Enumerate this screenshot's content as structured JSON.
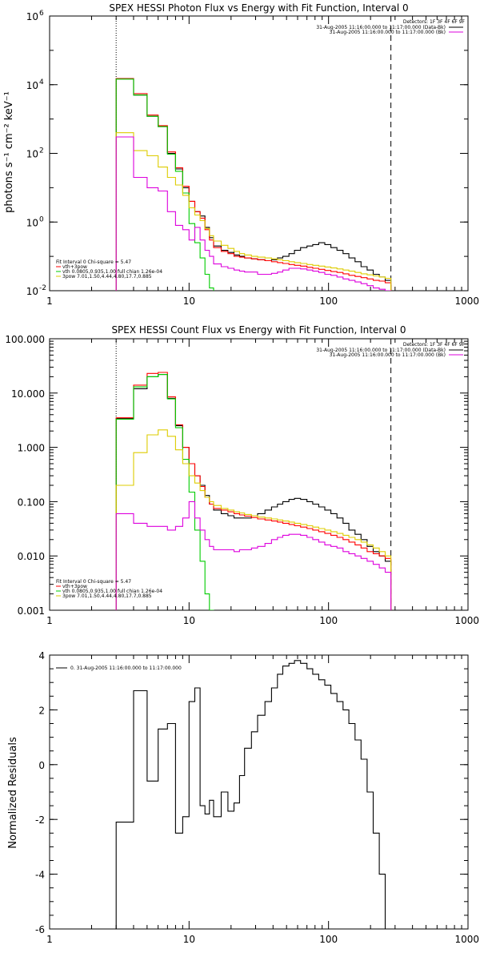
{
  "chart_data": [
    {
      "type": "line",
      "title": "SPEX HESSI Photon Flux vs Energy with Fit Function, Interval 0",
      "xlabel": "",
      "ylabel": "photons s⁻¹ cm⁻² keV⁻¹",
      "xscale": "log",
      "yscale": "log",
      "xlim": [
        1,
        1000
      ],
      "ylim": [
        0.01,
        1000000
      ],
      "x_ticks": [
        1,
        10,
        100,
        1000
      ],
      "x_tick_labels": [
        "1",
        "10",
        "100",
        "1000"
      ],
      "y_ticks": [
        0.01,
        1,
        100,
        10000,
        1000000
      ],
      "y_tick_labels": [
        "10",
        "10",
        "10",
        "10",
        "10"
      ],
      "y_tick_exponents": [
        "-2",
        "0",
        "2",
        "4",
        "6"
      ],
      "vlines": [
        {
          "x": 3,
          "style": "dotted"
        },
        {
          "x": 280,
          "style": "dashed"
        }
      ],
      "legend_top": {
        "placement": "top-right",
        "header": "Detectors: 1F 3F 4F 6F 9F",
        "entries": [
          {
            "label": "31-Aug-2005 11:16:00.000 to 11:17:00.000 (Data-Bk)",
            "color": "#000000"
          },
          {
            "label": "31-Aug-2005 11:16:00.000 to 11:17:00.000 (Bk)",
            "color": "#dd00dd"
          }
        ]
      },
      "legend_bottom": {
        "placement": "bottom-left",
        "header": "Fit Interval 0   Chi-square = 5.47",
        "entries": [
          {
            "label": "vth+3pow",
            "color": "#ff0000"
          },
          {
            "label": "vth 0.0805,0.935,1.00  full chian 1.26e-04",
            "color": "#00cc00"
          },
          {
            "label": "3pow 7.01,1.50,4.44,4.80,17.7,0.885",
            "color": "#ddcc00"
          }
        ]
      },
      "series": [
        {
          "color": "#000000",
          "edges": [
            3,
            4,
            5,
            6,
            7,
            8,
            9,
            10,
            11,
            12,
            13,
            14,
            15,
            17,
            19,
            21,
            23,
            25,
            28,
            31,
            35,
            39,
            43,
            47,
            52,
            57,
            63,
            70,
            77,
            85,
            94,
            104,
            115,
            127,
            140,
            155,
            171,
            189,
            209,
            231,
            255,
            280
          ],
          "values": [
            15000,
            5000,
            1200,
            600,
            100,
            35,
            10,
            4,
            2,
            1.5,
            0.7,
            0.35,
            0.2,
            0.15,
            0.13,
            0.11,
            0.1,
            0.09,
            0.085,
            0.08,
            0.075,
            0.08,
            0.09,
            0.1,
            0.12,
            0.15,
            0.18,
            0.2,
            0.22,
            0.25,
            0.22,
            0.18,
            0.15,
            0.12,
            0.09,
            0.07,
            0.05,
            0.04,
            0.03,
            0.025,
            0.02
          ]
        },
        {
          "color": "#ff0000",
          "edges": [
            3,
            4,
            5,
            6,
            7,
            8,
            9,
            10,
            11,
            12,
            13,
            14,
            15,
            17,
            19,
            21,
            23,
            25,
            28,
            31,
            35,
            39,
            43,
            47,
            52,
            57,
            63,
            70,
            77,
            85,
            94,
            104,
            115,
            127,
            140,
            155,
            171,
            189,
            209,
            231,
            255,
            280
          ],
          "values": [
            15000,
            5500,
            1300,
            640,
            110,
            38,
            11,
            4,
            2,
            1.3,
            0.6,
            0.3,
            0.18,
            0.14,
            0.12,
            0.1,
            0.095,
            0.09,
            0.085,
            0.08,
            0.075,
            0.07,
            0.066,
            0.062,
            0.058,
            0.055,
            0.052,
            0.048,
            0.045,
            0.042,
            0.039,
            0.036,
            0.034,
            0.031,
            0.028,
            0.026,
            0.024,
            0.022,
            0.02,
            0.019,
            0.017
          ]
        },
        {
          "color": "#00cc00",
          "edges": [
            3,
            4,
            5,
            6,
            7,
            8,
            9,
            10,
            11,
            12,
            13,
            14,
            15
          ],
          "values": [
            14500,
            5000,
            1200,
            600,
            95,
            30,
            7,
            0.9,
            0.25,
            0.09,
            0.03,
            0.012
          ]
        },
        {
          "color": "#ddcc00",
          "edges": [
            3,
            4,
            5,
            6,
            7,
            8,
            9,
            10,
            11,
            12,
            13,
            14,
            15,
            17,
            19,
            21,
            23,
            25,
            28,
            31,
            35,
            39,
            43,
            47,
            52,
            57,
            63,
            70,
            77,
            85,
            94,
            104,
            115,
            127,
            140,
            155,
            171,
            189,
            209,
            231,
            255,
            280
          ],
          "values": [
            400,
            120,
            85,
            40,
            20,
            12,
            6,
            2.6,
            1.6,
            1.1,
            0.65,
            0.4,
            0.28,
            0.21,
            0.17,
            0.14,
            0.12,
            0.11,
            0.1,
            0.095,
            0.09,
            0.085,
            0.08,
            0.075,
            0.07,
            0.066,
            0.062,
            0.058,
            0.055,
            0.052,
            0.049,
            0.046,
            0.043,
            0.04,
            0.037,
            0.034,
            0.031,
            0.029,
            0.027,
            0.025,
            0.023
          ]
        },
        {
          "color": "#dd00dd",
          "edges": [
            3,
            4,
            5,
            6,
            7,
            8,
            9,
            10,
            11,
            12,
            13,
            14,
            15,
            17,
            19,
            21,
            23,
            25,
            28,
            31,
            35,
            39,
            43,
            47,
            52,
            57,
            63,
            70,
            77,
            85,
            94,
            104,
            115,
            127,
            140,
            155,
            171,
            189,
            209,
            231,
            255,
            280
          ],
          "values": [
            300,
            20,
            10,
            8,
            2,
            0.8,
            0.6,
            0.3,
            0.7,
            0.3,
            0.15,
            0.1,
            0.06,
            0.05,
            0.045,
            0.04,
            0.037,
            0.035,
            0.035,
            0.03,
            0.03,
            0.032,
            0.035,
            0.04,
            0.045,
            0.045,
            0.043,
            0.04,
            0.037,
            0.034,
            0.03,
            0.028,
            0.025,
            0.022,
            0.02,
            0.018,
            0.016,
            0.014,
            0.012,
            0.011,
            0.01
          ]
        }
      ]
    },
    {
      "type": "line",
      "title": "SPEX HESSI Count Flux vs Energy with Fit Function, Interval 0",
      "xlabel": "",
      "ylabel": "",
      "xscale": "log",
      "yscale": "log",
      "xlim": [
        1,
        1000
      ],
      "ylim": [
        0.001,
        100
      ],
      "x_ticks": [
        1,
        10,
        100,
        1000
      ],
      "x_tick_labels": [
        "1",
        "10",
        "100",
        "1000"
      ],
      "y_ticks": [
        0.001,
        0.01,
        0.1,
        1,
        10,
        100
      ],
      "y_tick_labels": [
        "0.001",
        "0.010",
        "0.100",
        "1.000",
        "10.000",
        "100.000"
      ],
      "vlines": [
        {
          "x": 3,
          "style": "dotted"
        },
        {
          "x": 280,
          "style": "dashed"
        }
      ],
      "legend_top": {
        "placement": "top-right",
        "header": "Detectors: 1F 3F 4F 6F 9F",
        "entries": [
          {
            "label": "31-Aug-2005 11:16:00.000 to 11:17:00.000 (Data-Bk)",
            "color": "#000000"
          },
          {
            "label": "31-Aug-2005 11:16:00.000 to 11:17:00.000 (Bk)",
            "color": "#dd00dd"
          }
        ]
      },
      "legend_bottom": {
        "placement": "bottom-left",
        "header": "Fit Interval 0   Chi-square = 5.47",
        "entries": [
          {
            "label": "vth+3pow",
            "color": "#ff0000"
          },
          {
            "label": "vth 0.0805,0.935,1.00  full chian 1.26e-04",
            "color": "#00cc00"
          },
          {
            "label": "3pow 7.01,1.50,4.44,4.80,17.7,0.885",
            "color": "#ddcc00"
          }
        ]
      },
      "series": [
        {
          "color": "#000000",
          "edges": [
            3,
            4,
            5,
            6,
            7,
            8,
            9,
            10,
            11,
            12,
            13,
            14,
            15,
            17,
            19,
            21,
            23,
            25,
            28,
            31,
            35,
            39,
            43,
            47,
            52,
            57,
            63,
            70,
            77,
            85,
            94,
            104,
            115,
            127,
            140,
            155,
            171,
            189,
            209,
            231,
            255,
            280
          ],
          "values": [
            3.4,
            12,
            20,
            22,
            8,
            2.5,
            1,
            0.5,
            0.3,
            0.2,
            0.13,
            0.09,
            0.07,
            0.06,
            0.055,
            0.05,
            0.05,
            0.05,
            0.055,
            0.06,
            0.07,
            0.08,
            0.09,
            0.1,
            0.11,
            0.115,
            0.11,
            0.1,
            0.09,
            0.08,
            0.07,
            0.06,
            0.05,
            0.04,
            0.03,
            0.025,
            0.02,
            0.015,
            0.012,
            0.01,
            0.008
          ]
        },
        {
          "color": "#ff0000",
          "edges": [
            3,
            4,
            5,
            6,
            7,
            8,
            9,
            10,
            11,
            12,
            13,
            14,
            15,
            17,
            19,
            21,
            23,
            25,
            28,
            31,
            35,
            39,
            43,
            47,
            52,
            57,
            63,
            70,
            77,
            85,
            94,
            104,
            115,
            127,
            140,
            155,
            171,
            189,
            209,
            231,
            255,
            280
          ],
          "values": [
            3.5,
            14,
            23,
            24,
            8.5,
            2.6,
            1,
            0.5,
            0.3,
            0.19,
            0.12,
            0.09,
            0.075,
            0.07,
            0.065,
            0.06,
            0.057,
            0.054,
            0.051,
            0.048,
            0.046,
            0.044,
            0.042,
            0.04,
            0.038,
            0.036,
            0.034,
            0.032,
            0.03,
            0.028,
            0.026,
            0.024,
            0.022,
            0.02,
            0.018,
            0.016,
            0.014,
            0.012,
            0.011,
            0.01,
            0.009
          ]
        },
        {
          "color": "#00cc00",
          "edges": [
            3,
            4,
            5,
            6,
            7,
            8,
            9,
            10,
            11,
            12,
            13,
            14,
            15
          ],
          "values": [
            3.3,
            13,
            20,
            22,
            7.8,
            2.3,
            0.6,
            0.15,
            0.03,
            0.008,
            0.002,
            0.001
          ]
        },
        {
          "color": "#ddcc00",
          "edges": [
            3,
            4,
            5,
            6,
            7,
            8,
            9,
            10,
            11,
            12,
            13,
            14,
            15,
            17,
            19,
            21,
            23,
            25,
            28,
            31,
            35,
            39,
            43,
            47,
            52,
            57,
            63,
            70,
            77,
            85,
            94,
            104,
            115,
            127,
            140,
            155,
            171,
            189,
            209,
            231,
            255,
            280
          ],
          "values": [
            0.2,
            0.8,
            1.7,
            2.1,
            1.6,
            0.9,
            0.5,
            0.3,
            0.22,
            0.16,
            0.12,
            0.1,
            0.085,
            0.075,
            0.07,
            0.065,
            0.062,
            0.058,
            0.055,
            0.052,
            0.05,
            0.048,
            0.046,
            0.044,
            0.042,
            0.04,
            0.038,
            0.036,
            0.034,
            0.032,
            0.03,
            0.028,
            0.026,
            0.024,
            0.022,
            0.02,
            0.018,
            0.016,
            0.014,
            0.012,
            0.01
          ]
        },
        {
          "color": "#dd00dd",
          "edges": [
            3,
            4,
            5,
            6,
            7,
            8,
            9,
            10,
            11,
            12,
            13,
            14,
            15,
            17,
            19,
            21,
            23,
            25,
            28,
            31,
            35,
            39,
            43,
            47,
            52,
            57,
            63,
            70,
            77,
            85,
            94,
            104,
            115,
            127,
            140,
            155,
            171,
            189,
            209,
            231,
            255,
            280
          ],
          "values": [
            0.06,
            0.04,
            0.035,
            0.035,
            0.03,
            0.035,
            0.05,
            0.1,
            0.05,
            0.03,
            0.02,
            0.015,
            0.013,
            0.013,
            0.013,
            0.012,
            0.013,
            0.013,
            0.014,
            0.015,
            0.017,
            0.02,
            0.022,
            0.024,
            0.025,
            0.025,
            0.024,
            0.022,
            0.02,
            0.018,
            0.016,
            0.015,
            0.014,
            0.012,
            0.011,
            0.01,
            0.009,
            0.008,
            0.007,
            0.006,
            0.005
          ]
        }
      ]
    },
    {
      "type": "line",
      "title": "",
      "xlabel": "",
      "ylabel": "Normalized Residuals",
      "xscale": "log",
      "yscale": "linear",
      "xlim": [
        1,
        1000
      ],
      "ylim": [
        -6,
        4
      ],
      "x_ticks": [
        1,
        10,
        100,
        1000
      ],
      "x_tick_labels": [
        "1",
        "10",
        "100",
        "1000"
      ],
      "y_ticks": [
        -6,
        -4,
        -2,
        0,
        2,
        4
      ],
      "y_tick_labels": [
        "-6",
        "-4",
        "-2",
        "0",
        "2",
        "4"
      ],
      "vlines": [],
      "legend_top": {
        "placement": "top-left",
        "header": "",
        "entries": [
          {
            "label": "0. 31-Aug-2005 11:16:00.000 to 11:17:00.000",
            "color": "#000000"
          }
        ]
      },
      "legend_bottom": null,
      "series": [
        {
          "color": "#000000",
          "edges": [
            3,
            4,
            5,
            6,
            7,
            8,
            9,
            10,
            11,
            12,
            13,
            14,
            15,
            17,
            19,
            21,
            23,
            25,
            28,
            31,
            35,
            39,
            43,
            47,
            52,
            57,
            63,
            70,
            77,
            85,
            94,
            104,
            115,
            127,
            140,
            155,
            171,
            189,
            209,
            231,
            255,
            280
          ],
          "values": [
            -2.1,
            2.7,
            -0.6,
            1.3,
            1.5,
            -2.5,
            -1.9,
            2.3,
            2.8,
            -1.5,
            -1.8,
            -1.3,
            -1.9,
            -1.0,
            -1.7,
            -1.4,
            -0.4,
            0.6,
            1.2,
            1.8,
            2.3,
            2.8,
            3.3,
            3.6,
            3.7,
            3.8,
            3.7,
            3.5,
            3.3,
            3.1,
            2.9,
            2.6,
            2.3,
            2.0,
            1.5,
            0.9,
            0.2,
            -1.0,
            -2.5,
            -4.0,
            -6.0
          ]
        }
      ]
    }
  ]
}
